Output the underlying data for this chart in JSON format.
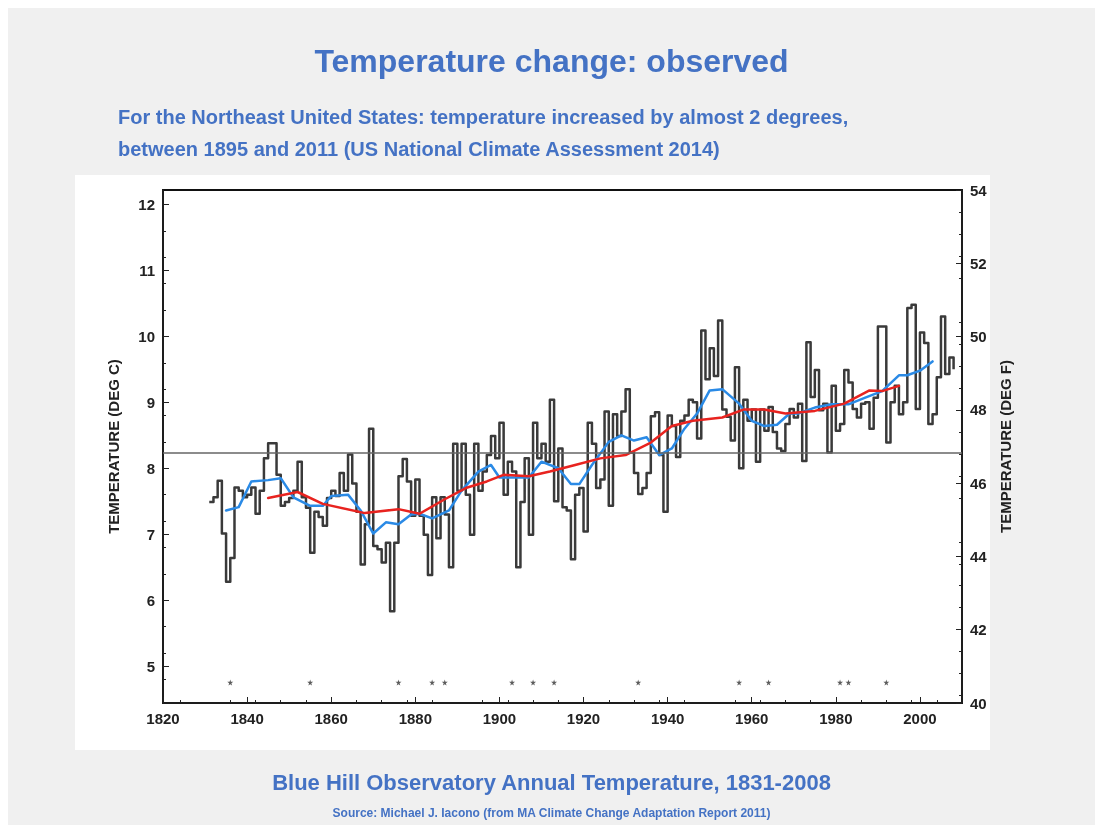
{
  "chart_data": {
    "type": "step",
    "title": "Temperature change: observed",
    "subtitle": "For the Northeast United States: temperature increased by almost 2 degrees, between 1895 and 2011 (US National Climate Assessment 2014)",
    "ylabel": "TEMPERATURE (DEG C)",
    "y2label": "TEMPERATURE (DEG F)",
    "annotations": [
      "Blue Hill Observatory Annual Temperature, 1831-2008",
      "Source: Michael J. Iacono (from MA Climate Change Adaptation Report 2011)"
    ],
    "x": [
      1831,
      1832,
      1833,
      1834,
      1835,
      1836,
      1837,
      1838,
      1839,
      1840,
      1841,
      1842,
      1843,
      1844,
      1845,
      1846,
      1847,
      1848,
      1849,
      1850,
      1851,
      1852,
      1853,
      1854,
      1855,
      1856,
      1857,
      1858,
      1859,
      1860,
      1861,
      1862,
      1863,
      1864,
      1865,
      1866,
      1867,
      1868,
      1869,
      1870,
      1871,
      1872,
      1873,
      1874,
      1875,
      1876,
      1877,
      1878,
      1879,
      1880,
      1881,
      1882,
      1883,
      1884,
      1885,
      1886,
      1887,
      1888,
      1889,
      1890,
      1891,
      1892,
      1893,
      1894,
      1895,
      1896,
      1897,
      1898,
      1899,
      1900,
      1901,
      1902,
      1903,
      1904,
      1905,
      1906,
      1907,
      1908,
      1909,
      1910,
      1911,
      1912,
      1913,
      1914,
      1915,
      1916,
      1917,
      1918,
      1919,
      1920,
      1921,
      1922,
      1923,
      1924,
      1925,
      1926,
      1927,
      1928,
      1929,
      1930,
      1931,
      1932,
      1933,
      1934,
      1935,
      1936,
      1937,
      1938,
      1939,
      1940,
      1941,
      1942,
      1943,
      1944,
      1945,
      1946,
      1947,
      1948,
      1949,
      1950,
      1951,
      1952,
      1953,
      1954,
      1955,
      1956,
      1957,
      1958,
      1959,
      1960,
      1961,
      1962,
      1963,
      1964,
      1965,
      1966,
      1967,
      1968,
      1969,
      1970,
      1971,
      1972,
      1973,
      1974,
      1975,
      1976,
      1977,
      1978,
      1979,
      1980,
      1981,
      1982,
      1983,
      1984,
      1985,
      1986,
      1987,
      1988,
      1989,
      1990,
      1991,
      1992,
      1993,
      1994,
      1995,
      1996,
      1997,
      1998,
      1999,
      2000,
      2001,
      2002,
      2003,
      2004,
      2005,
      2006,
      2007,
      2008
    ],
    "series": [
      {
        "color": "#3a3a3a",
        "values": [
          7.49,
          7.56,
          7.81,
          7.01,
          6.28,
          6.64,
          7.71,
          7.66,
          7.56,
          7.6,
          7.71,
          7.31,
          7.66,
          8.15,
          8.38,
          8.38,
          7.9,
          7.43,
          7.49,
          7.55,
          7.66,
          8.1,
          7.56,
          7.4,
          6.72,
          7.34,
          7.26,
          7.13,
          7.55,
          7.66,
          7.58,
          7.93,
          7.66,
          8.21,
          7.77,
          7.34,
          6.54,
          7.15,
          8.6,
          6.82,
          6.77,
          6.57,
          6.87,
          5.83,
          6.87,
          7.88,
          8.14,
          7.8,
          7.28,
          7.83,
          7.28,
          6.99,
          6.38,
          7.56,
          6.94,
          7.56,
          7.3,
          6.5,
          8.37,
          7.66,
          8.37,
          7.6,
          6.99,
          8.37,
          7.66,
          7.95,
          8.2,
          8.49,
          8.15,
          8.69,
          7.6,
          8.1,
          7.95,
          6.5,
          7.49,
          8.15,
          6.99,
          8.69,
          8.15,
          8.37,
          8.1,
          9.04,
          7.5,
          8.3,
          7.41,
          7.36,
          6.62,
          7.6,
          7.7,
          7.04,
          8.69,
          8.37,
          7.7,
          7.83,
          8.86,
          7.43,
          8.82,
          8.49,
          8.86,
          9.2,
          8.24,
          7.93,
          7.61,
          7.7,
          7.93,
          8.79,
          8.85,
          8.2,
          7.34,
          8.8,
          8.64,
          8.17,
          8.72,
          8.8,
          9.04,
          9.0,
          8.45,
          10.09,
          9.35,
          9.82,
          9.4,
          10.24,
          8.89,
          8.78,
          8.42,
          9.53,
          8.0,
          9.04,
          8.72,
          8.89,
          8.1,
          8.89,
          8.57,
          8.93,
          8.55,
          8.3,
          8.26,
          8.67,
          8.9,
          8.77,
          8.98,
          8.11,
          9.91,
          9.08,
          9.49,
          8.88,
          8.98,
          8.24,
          9.25,
          8.57,
          8.67,
          9.49,
          9.3,
          8.9,
          8.77,
          8.98,
          9.0,
          8.6,
          9.07,
          10.15,
          10.15,
          8.39,
          9.0,
          9.25,
          8.82,
          9.0,
          10.43,
          10.48,
          8.9,
          10.06,
          9.9,
          8.67,
          8.82,
          9.38,
          10.3,
          9.43,
          9.68,
          9.5
        ]
      },
      {
        "type": "line",
        "color": "#2a8ae6",
        "x": [
          1835,
          1838,
          1841,
          1845,
          1848,
          1851,
          1855,
          1858,
          1860,
          1864,
          1867,
          1870,
          1873,
          1876,
          1879,
          1881,
          1884,
          1888,
          1891,
          1895,
          1898,
          1900,
          1903,
          1907,
          1910,
          1914,
          1917,
          1919,
          1922,
          1926,
          1929,
          1932,
          1935,
          1938,
          1941,
          1944,
          1947,
          1950,
          1953,
          1957,
          1960,
          1963,
          1966,
          1969,
          1971,
          1975,
          1979,
          1983,
          1987,
          1991,
          1995,
          1997,
          2000,
          2003
        ],
        "values": [
          7.36,
          7.41,
          7.8,
          7.82,
          7.85,
          7.56,
          7.43,
          7.43,
          7.58,
          7.6,
          7.36,
          7.01,
          7.18,
          7.15,
          7.3,
          7.31,
          7.24,
          7.36,
          7.66,
          7.95,
          8.05,
          7.86,
          7.86,
          7.86,
          8.1,
          8.0,
          7.76,
          7.76,
          8.05,
          8.4,
          8.5,
          8.42,
          8.47,
          8.2,
          8.3,
          8.6,
          8.83,
          9.18,
          9.2,
          8.98,
          8.72,
          8.64,
          8.66,
          8.83,
          8.83,
          8.92,
          8.97,
          8.97,
          9.07,
          9.17,
          9.41,
          9.41,
          9.48,
          9.62
        ]
      },
      {
        "type": "line",
        "color": "#e8231f",
        "x": [
          1845,
          1852,
          1858,
          1868,
          1876,
          1881,
          1887,
          1892,
          1897,
          1901,
          1907,
          1912,
          1918,
          1924,
          1930,
          1936,
          1941,
          1946,
          1953,
          1958,
          1963,
          1968,
          1975,
          1982,
          1988,
          1991,
          1995
        ],
        "values": [
          7.55,
          7.64,
          7.46,
          7.32,
          7.38,
          7.31,
          7.53,
          7.7,
          7.8,
          7.9,
          7.88,
          7.95,
          8.05,
          8.15,
          8.2,
          8.39,
          8.64,
          8.72,
          8.77,
          8.89,
          8.89,
          8.83,
          8.87,
          8.98,
          9.18,
          9.17,
          9.25
        ]
      },
      {
        "type": "scatter",
        "color": "#333333",
        "marker": "star",
        "x": [
          1836,
          1855,
          1876,
          1884,
          1887,
          1903,
          1908,
          1913,
          1933,
          1957,
          1964,
          1981,
          1983,
          1992
        ],
        "values": [
          4.75,
          4.75,
          4.75,
          4.75,
          4.75,
          4.75,
          4.75,
          4.75,
          4.75,
          4.75,
          4.75,
          4.75,
          4.75,
          4.75
        ]
      }
    ],
    "ref_lines": [
      {
        "axis": "y",
        "value": 8.23,
        "color": "#666666"
      }
    ],
    "xlim": [
      1820,
      2010
    ],
    "xticks": [
      1820,
      1840,
      1860,
      1880,
      1900,
      1920,
      1940,
      1960,
      1980,
      2000
    ],
    "ylim": [
      4.44,
      12.22
    ],
    "yticks": [
      5,
      6,
      7,
      8,
      9,
      10,
      11,
      12
    ],
    "y2lim": [
      40,
      54
    ],
    "y2ticks": [
      40,
      42,
      44,
      46,
      48,
      50,
      52,
      54
    ]
  }
}
